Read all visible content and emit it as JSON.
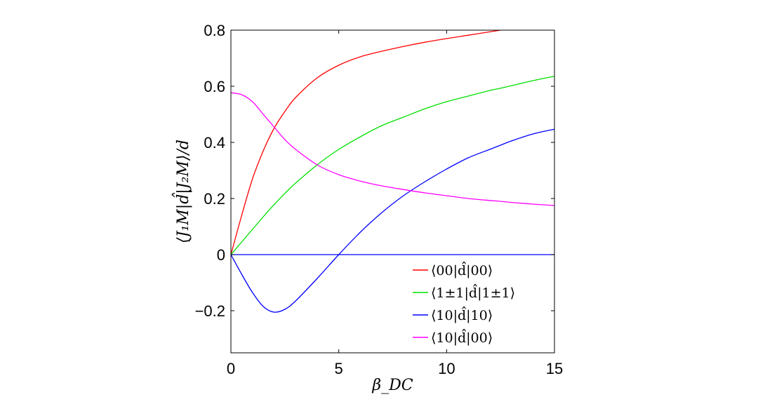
{
  "chart_data": {
    "type": "line",
    "title": "",
    "xlabel": "β_DC",
    "ylabel": "⟨J₁M|d̂|J₂M⟩/d",
    "xlim": [
      0,
      15
    ],
    "ylim": [
      -0.35,
      0.8
    ],
    "xticks": [
      0,
      5,
      10,
      15
    ],
    "xtick_labels": [
      "0",
      "5",
      "10",
      "15"
    ],
    "yticks": [
      -0.2,
      0,
      0.2,
      0.4,
      0.6,
      0.8
    ],
    "ytick_labels": [
      "−0.2",
      "0",
      "0.2",
      "0.4",
      "0.6",
      "0.8"
    ],
    "grid": false,
    "legend_position": "bottom-right",
    "x": [
      0,
      0.5,
      1,
      1.5,
      2,
      2.5,
      3,
      4,
      5,
      6,
      7,
      8,
      9,
      10,
      11,
      12,
      12.5,
      13,
      14,
      15
    ],
    "series": [
      {
        "name": "⟨00|d̂|00⟩",
        "color": "#ff0000",
        "values": [
          0,
          0.14,
          0.27,
          0.37,
          0.45,
          0.51,
          0.56,
          0.63,
          0.675,
          0.705,
          0.725,
          0.742,
          0.757,
          0.77,
          0.782,
          0.794,
          0.8,
          null,
          null,
          null
        ]
      },
      {
        "name": "⟨1±1|d̂|1±1⟩",
        "color": "#00e000",
        "values": [
          0,
          0.045,
          0.09,
          0.135,
          0.178,
          0.218,
          0.255,
          0.32,
          0.375,
          0.42,
          0.46,
          0.49,
          0.52,
          0.545,
          0.565,
          0.585,
          0.593,
          0.602,
          0.62,
          0.636
        ]
      },
      {
        "name": "⟨10|d̂|10⟩",
        "color": "#0000ff",
        "values": [
          0,
          -0.07,
          -0.135,
          -0.185,
          -0.205,
          -0.195,
          -0.165,
          -0.085,
          0,
          0.08,
          0.15,
          0.21,
          0.26,
          0.305,
          0.345,
          0.375,
          0.39,
          0.405,
          0.43,
          0.447
        ]
      },
      {
        "name": "⟨10|d̂|00⟩",
        "color": "#ff00ff",
        "values": [
          0.577,
          0.57,
          0.545,
          0.5,
          0.455,
          0.41,
          0.375,
          0.32,
          0.285,
          0.262,
          0.245,
          0.232,
          0.22,
          0.21,
          0.2,
          0.193,
          0.19,
          0.186,
          0.18,
          0.175
        ]
      },
      {
        "name": "",
        "color": "#0000ff",
        "values": [
          0,
          0,
          0,
          0,
          0,
          0,
          0,
          0,
          0,
          0,
          0,
          0,
          0,
          0,
          0,
          0,
          0,
          0,
          0,
          0
        ]
      }
    ]
  }
}
